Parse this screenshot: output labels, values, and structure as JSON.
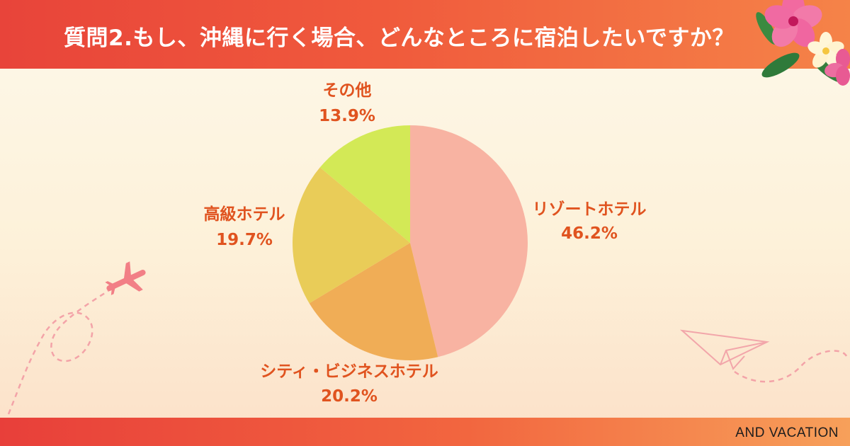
{
  "header": {
    "title": "質問2.もし、沖縄に行く場合、どんなところに宿泊したいですか？"
  },
  "footer": {
    "brand": "AND VACATION"
  },
  "colors": {
    "header_start": "#e8443a",
    "header_end": "#f58348",
    "label_text": "#e0531f"
  },
  "chart_data": {
    "type": "pie",
    "title": "",
    "start_angle_deg": 0,
    "direction": "clockwise",
    "slices": [
      {
        "label": "リゾートホテル",
        "value": 46.2,
        "display": "46.2%",
        "color": "#f8b3a2"
      },
      {
        "label": "シティ・ビジネスホテル",
        "value": 20.2,
        "display": "20.2%",
        "color": "#f0ad56"
      },
      {
        "label": "高級ホテル",
        "value": 19.7,
        "display": "19.7%",
        "color": "#e9cc58"
      },
      {
        "label": "その他",
        "value": 13.9,
        "display": "13.9%",
        "color": "#d3e956"
      }
    ]
  }
}
